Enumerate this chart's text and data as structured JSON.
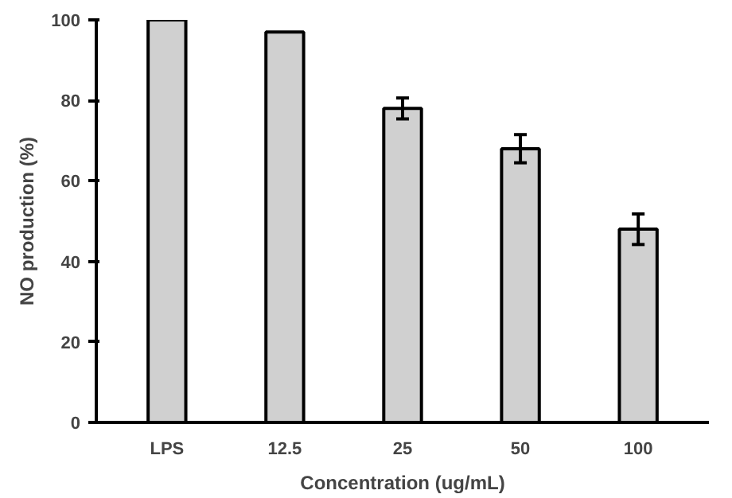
{
  "chart_data": {
    "type": "bar",
    "xlabel": "Concentration (ug/mL)",
    "ylabel": "NO production (%)",
    "categories": [
      "LPS",
      "12.5",
      "25",
      "50",
      "100"
    ],
    "values": [
      100,
      97,
      78,
      68,
      48
    ],
    "errors": [
      null,
      null,
      2.6,
      3.5,
      3.8
    ],
    "color": "#d0d0d0",
    "ylim": [
      0,
      100
    ],
    "yticks": [
      0,
      20,
      40,
      60,
      80,
      100
    ],
    "grid": false
  }
}
